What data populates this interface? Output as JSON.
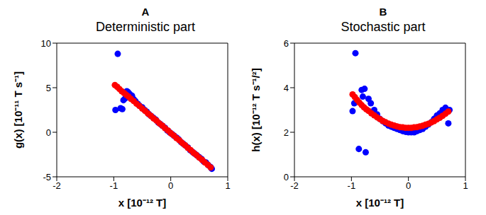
{
  "chart_data": [
    {
      "type": "scatter",
      "panel_label": "A",
      "title": "Deterministic part",
      "x_label": "x [10⁻¹² T]",
      "y_label": "g(x) [10⁻¹¹ T s⁻¹]",
      "xlim": [
        -2,
        1
      ],
      "xticks": [
        -2,
        -1,
        0,
        1
      ],
      "ylim": [
        -5,
        10
      ],
      "yticks": [
        -5,
        0,
        5,
        10
      ],
      "grid": false,
      "series": [
        {
          "color": "#0000ff",
          "marker": "circle",
          "x": [
            -0.93,
            -0.97,
            -0.88,
            -0.85,
            -0.83,
            -0.8,
            -0.77,
            -0.75,
            -0.72,
            -0.68,
            -0.65,
            -0.62,
            -0.58,
            -0.55,
            -0.5,
            -0.46,
            -0.42,
            -0.38,
            -0.34,
            -0.3,
            -0.26,
            -0.22,
            -0.18,
            -0.14,
            -0.1,
            -0.06,
            -0.02,
            0.02,
            0.06,
            0.1,
            0.14,
            0.18,
            0.22,
            0.26,
            0.3,
            0.34,
            0.38,
            0.42,
            0.46,
            0.5,
            0.54,
            0.58,
            0.62,
            0.66,
            0.7,
            0.72
          ],
          "values": [
            8.8,
            2.5,
            2.7,
            2.6,
            3.6,
            3.8,
            4.6,
            4.5,
            4.3,
            4.1,
            3.7,
            3.5,
            3.2,
            3.0,
            2.8,
            2.5,
            2.3,
            2.0,
            1.8,
            1.6,
            1.4,
            1.1,
            0.9,
            0.7,
            0.5,
            0.2,
            0.0,
            -0.2,
            -0.4,
            -0.6,
            -0.8,
            -1.1,
            -1.3,
            -1.5,
            -1.7,
            -2.0,
            -2.2,
            -2.4,
            -2.6,
            -2.8,
            -3.0,
            -3.3,
            -3.4,
            -3.7,
            -3.9,
            -4.1
          ]
        },
        {
          "color": "#ff0000",
          "marker": "circle",
          "x": [
            -0.98,
            -0.94,
            -0.9,
            -0.86,
            -0.82,
            -0.78,
            -0.74,
            -0.7,
            -0.65,
            -0.6,
            -0.55,
            -0.5,
            -0.45,
            -0.4,
            -0.35,
            -0.3,
            -0.25,
            -0.2,
            -0.15,
            -0.1,
            -0.05,
            0,
            0.05,
            0.1,
            0.15,
            0.2,
            0.25,
            0.3,
            0.35,
            0.4,
            0.45,
            0.5,
            0.55,
            0.6,
            0.65,
            0.7
          ],
          "values": [
            5.3,
            5.1,
            4.85,
            4.6,
            4.4,
            4.2,
            4.0,
            3.75,
            3.5,
            3.2,
            2.95,
            2.65,
            2.4,
            2.1,
            1.85,
            1.55,
            1.3,
            1.0,
            0.75,
            0.45,
            0.2,
            -0.1,
            -0.35,
            -0.65,
            -0.9,
            -1.2,
            -1.45,
            -1.75,
            -2.0,
            -2.3,
            -2.55,
            -2.85,
            -3.1,
            -3.4,
            -3.65,
            -3.95
          ]
        }
      ]
    },
    {
      "type": "scatter",
      "panel_label": "B",
      "title": "Stochastic part",
      "x_label": "x [10⁻¹² T]",
      "y_label": "h(x) [10⁻¹² T s⁻¹/²]",
      "xlim": [
        -2,
        1
      ],
      "xticks": [
        -2,
        -1,
        0,
        1
      ],
      "ylim": [
        0,
        6
      ],
      "yticks": [
        0,
        2,
        4,
        6
      ],
      "grid": false,
      "series": [
        {
          "color": "#0000ff",
          "marker": "circle",
          "x": [
            -0.93,
            -0.98,
            -0.95,
            -0.87,
            -0.82,
            -0.8,
            -0.77,
            -0.75,
            -0.7,
            -0.66,
            -0.6,
            -0.55,
            -0.5,
            -0.45,
            -0.4,
            -0.35,
            -0.3,
            -0.25,
            -0.2,
            -0.15,
            -0.1,
            -0.05,
            0,
            0.05,
            0.1,
            0.15,
            0.2,
            0.25,
            0.3,
            0.35,
            0.4,
            0.45,
            0.5,
            0.55,
            0.6,
            0.65,
            0.7,
            0.72
          ],
          "values": [
            5.55,
            2.95,
            3.3,
            1.25,
            3.9,
            3.6,
            3.95,
            1.1,
            3.5,
            3.3,
            3.0,
            2.8,
            2.6,
            2.5,
            2.4,
            2.3,
            2.25,
            2.2,
            2.15,
            2.1,
            2.05,
            2.02,
            2.0,
            2.0,
            2.0,
            2.05,
            2.1,
            2.15,
            2.25,
            2.35,
            2.45,
            2.6,
            2.75,
            2.85,
            3.0,
            3.1,
            2.4,
            3.0
          ]
        },
        {
          "color": "#ff0000",
          "marker": "circle",
          "x": [
            -0.98,
            -0.94,
            -0.9,
            -0.86,
            -0.82,
            -0.78,
            -0.74,
            -0.7,
            -0.65,
            -0.6,
            -0.55,
            -0.5,
            -0.45,
            -0.4,
            -0.35,
            -0.3,
            -0.25,
            -0.2,
            -0.15,
            -0.1,
            -0.05,
            0,
            0.05,
            0.1,
            0.15,
            0.2,
            0.25,
            0.3,
            0.35,
            0.4,
            0.45,
            0.5,
            0.55,
            0.6,
            0.65,
            0.7
          ],
          "values": [
            3.7,
            3.58,
            3.45,
            3.33,
            3.22,
            3.12,
            3.03,
            2.96,
            2.85,
            2.76,
            2.67,
            2.59,
            2.51,
            2.45,
            2.39,
            2.34,
            2.3,
            2.26,
            2.23,
            2.22,
            2.2,
            2.2,
            2.2,
            2.22,
            2.23,
            2.26,
            2.29,
            2.34,
            2.38,
            2.44,
            2.5,
            2.58,
            2.65,
            2.74,
            2.83,
            2.93
          ]
        }
      ]
    }
  ]
}
